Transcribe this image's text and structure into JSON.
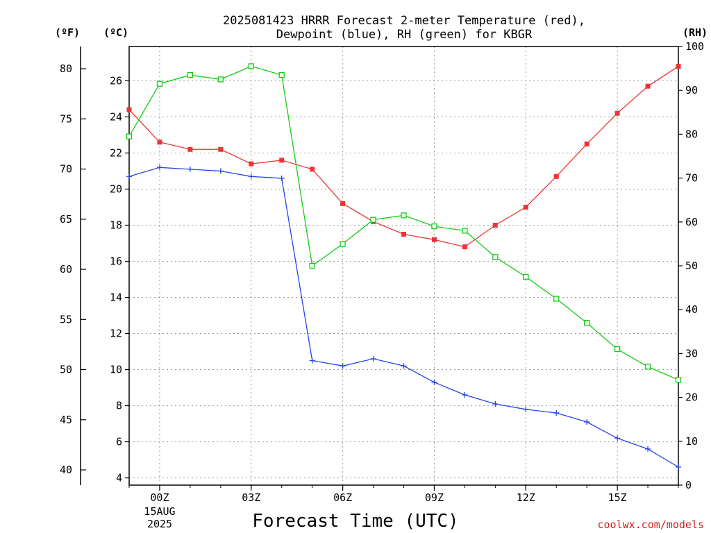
{
  "colors": {
    "temperature": "#ee3333",
    "dewpoint": "#2244ee",
    "rh": "#11cc11",
    "credit": "#d22020",
    "grid": "#9a9a9a"
  },
  "titles": {
    "line1": "2025081423 HRRR Forecast 2-meter Temperature (red),",
    "line2": "Dewpoint (blue), RH (green) for KBGR"
  },
  "units": {
    "fahrenheit": "(ºF)",
    "celsius": "(ºC)",
    "rh": "(RH)"
  },
  "xlabel": "Forecast Time (UTC)",
  "credit": "coolwx.com/models",
  "date_label": {
    "day": "15AUG",
    "year": "2025"
  },
  "chart_data": {
    "type": "line",
    "title": "2025081423 HRRR Forecast 2-meter Temperature (red), Dewpoint (blue), RH (green) for KBGR",
    "xlabel": "Forecast Time (UTC)",
    "x": [
      "23Z",
      "00Z",
      "01Z",
      "02Z",
      "03Z",
      "04Z",
      "05Z",
      "06Z",
      "07Z",
      "08Z",
      "09Z",
      "10Z",
      "11Z",
      "12Z",
      "13Z",
      "14Z",
      "15Z",
      "16Z",
      "17Z"
    ],
    "x_hours": [
      -1,
      0,
      1,
      2,
      3,
      4,
      5,
      6,
      7,
      8,
      9,
      10,
      11,
      12,
      13,
      14,
      15,
      16,
      17
    ],
    "x_ticks": [
      "00Z",
      "03Z",
      "06Z",
      "09Z",
      "12Z",
      "15Z"
    ],
    "xlim": [
      -1,
      17
    ],
    "axes": {
      "celsius": {
        "label": "(ºC)",
        "ylim": [
          3.6,
          27.9
        ],
        "ticks": [
          4,
          6,
          8,
          10,
          12,
          14,
          16,
          18,
          20,
          22,
          24,
          26
        ]
      },
      "fahrenheit": {
        "label": "(ºF)",
        "ticks": [
          40,
          45,
          50,
          55,
          60,
          65,
          70,
          75,
          80
        ]
      },
      "rh": {
        "label": "(RH)",
        "ylim": [
          0,
          100
        ],
        "ticks": [
          0,
          10,
          20,
          30,
          40,
          50,
          60,
          70,
          80,
          90,
          100
        ]
      }
    },
    "series": [
      {
        "name": "Temperature",
        "axis": "celsius",
        "marker": "filled-square",
        "values": [
          24.4,
          22.6,
          22.2,
          22.2,
          21.4,
          21.6,
          21.1,
          19.2,
          18.2,
          17.5,
          17.2,
          16.8,
          18.0,
          19.0,
          20.7,
          22.5,
          24.2,
          25.7,
          26.8
        ]
      },
      {
        "name": "Dewpoint",
        "axis": "celsius",
        "marker": "plus",
        "values": [
          20.7,
          21.2,
          21.1,
          21.0,
          20.7,
          20.6,
          10.5,
          10.2,
          10.6,
          10.2,
          9.3,
          8.6,
          8.1,
          7.8,
          7.6,
          7.1,
          6.2,
          5.6,
          4.6
        ]
      },
      {
        "name": "RH",
        "axis": "rh",
        "marker": "open-square",
        "values": [
          79.5,
          91.5,
          93.5,
          92.5,
          95.5,
          93.5,
          50,
          55,
          60.5,
          61.5,
          59,
          58,
          52,
          47.5,
          42.5,
          37,
          31,
          27,
          24
        ]
      }
    ]
  }
}
